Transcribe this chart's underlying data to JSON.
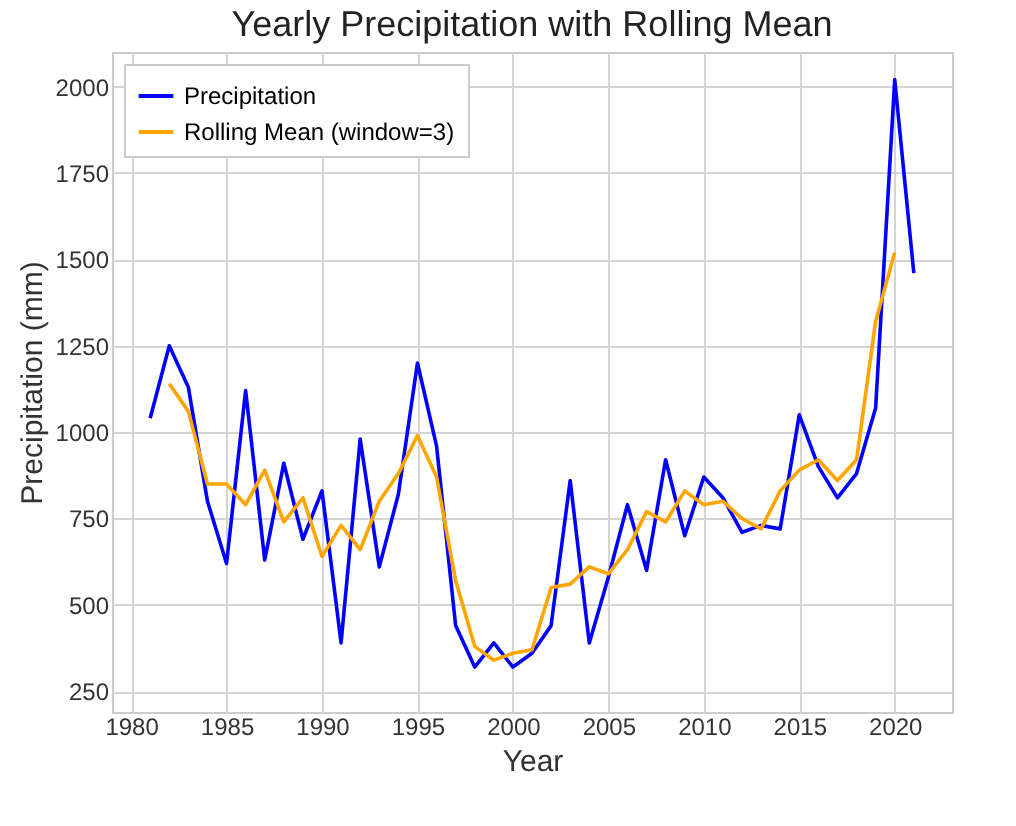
{
  "chart_data": {
    "type": "line",
    "title": "Yearly Precipitation with Rolling Mean",
    "xlabel": "Year",
    "ylabel": "Precipitation (mm)",
    "x": [
      1981,
      1982,
      1983,
      1984,
      1985,
      1986,
      1987,
      1988,
      1989,
      1990,
      1991,
      1992,
      1993,
      1994,
      1995,
      1996,
      1997,
      1998,
      1999,
      2000,
      2001,
      2002,
      2003,
      2004,
      2005,
      2006,
      2007,
      2008,
      2009,
      2010,
      2011,
      2012,
      2013,
      2014,
      2015,
      2016,
      2017,
      2018,
      2019,
      2020,
      2021
    ],
    "series": [
      {
        "name": "Precipitation",
        "color": "#0000ff",
        "values": [
          1040,
          1250,
          1130,
          800,
          620,
          1120,
          630,
          910,
          690,
          830,
          390,
          980,
          610,
          820,
          1200,
          960,
          440,
          320,
          390,
          320,
          360,
          440,
          860,
          390,
          580,
          790,
          600,
          920,
          700,
          870,
          810,
          710,
          730,
          720,
          1050,
          900,
          810,
          880,
          1070,
          2020,
          1460
        ]
      },
      {
        "name": "Rolling Mean (window=3)",
        "color": "#ffa500",
        "x": [
          1982,
          1983,
          1984,
          1985,
          1986,
          1987,
          1988,
          1989,
          1990,
          1991,
          1992,
          1993,
          1994,
          1995,
          1996,
          1997,
          1998,
          1999,
          2000,
          2001,
          2002,
          2003,
          2004,
          2005,
          2006,
          2007,
          2008,
          2009,
          2010,
          2011,
          2012,
          2013,
          2014,
          2015,
          2016,
          2017,
          2018,
          2019,
          2020
        ],
        "values": [
          1140,
          1060,
          850,
          850,
          790,
          890,
          740,
          810,
          640,
          730,
          660,
          800,
          880,
          990,
          870,
          570,
          380,
          340,
          360,
          370,
          550,
          560,
          610,
          590,
          660,
          770,
          740,
          830,
          790,
          800,
          750,
          720,
          830,
          890,
          920,
          860,
          920,
          1320,
          1520
        ]
      }
    ],
    "xlim": [
      1979,
      2023
    ],
    "xticks": [
      1980,
      1985,
      1990,
      1995,
      2000,
      2005,
      2010,
      2015,
      2020
    ],
    "ylim": [
      190,
      2100
    ],
    "yticks": [
      250,
      500,
      750,
      1000,
      1250,
      1500,
      1750,
      2000
    ],
    "grid": true,
    "legend": "top left",
    "line_style": "solid",
    "marker": "none"
  }
}
